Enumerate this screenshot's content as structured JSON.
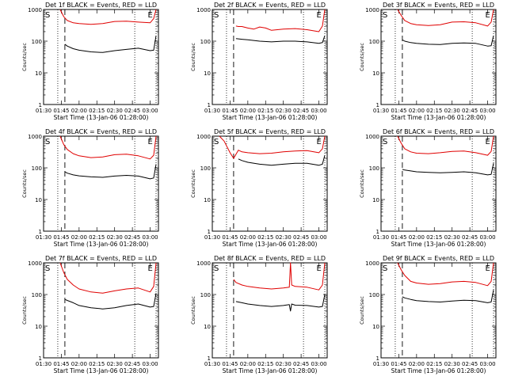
{
  "chart_data": [
    {
      "type": "line",
      "title": "Det 1f BLACK = Events, RED = LLD",
      "xlabel": "Start Time (13-Jan-06 01:28:00)",
      "ylabel": "Counts/sec",
      "yscale": "log",
      "ylim": [
        1,
        1000
      ],
      "x_ticks": [
        "01:30",
        "01:45",
        "02:00",
        "02:15",
        "02:30",
        "02:45",
        "03:00"
      ],
      "y_ticks": [
        "1",
        "10",
        "100",
        "1000"
      ],
      "markers": [
        "S",
        "E"
      ],
      "series": [
        {
          "name": "LLD",
          "color": "#e00000",
          "x": [
            "01:44",
            "01:47",
            "01:50",
            "01:55",
            "02:00",
            "02:10",
            "02:20",
            "02:30",
            "02:40",
            "02:50",
            "03:00",
            "03:03",
            "03:05"
          ],
          "y": [
            1000,
            600,
            450,
            380,
            360,
            340,
            360,
            420,
            430,
            400,
            380,
            520,
            1000
          ]
        },
        {
          "name": "Events",
          "color": "#000000",
          "x": [
            "01:48",
            "01:50",
            "01:55",
            "02:00",
            "02:10",
            "02:20",
            "02:30",
            "02:40",
            "02:50",
            "03:00",
            "03:03",
            "03:05"
          ],
          "y": [
            80,
            70,
            58,
            52,
            46,
            44,
            50,
            55,
            60,
            50,
            52,
            150
          ]
        }
      ]
    },
    {
      "type": "line",
      "title": "Det 2f BLACK = Events, RED = LLD",
      "xlabel": "Start Time (13-Jan-06 01:28:00)",
      "ylabel": "Counts/sec",
      "yscale": "log",
      "ylim": [
        1,
        1000
      ],
      "x_ticks": [
        "01:30",
        "01:45",
        "02:00",
        "02:15",
        "02:30",
        "02:45",
        "03:00"
      ],
      "y_ticks": [
        "1",
        "10",
        "100",
        "1000"
      ],
      "markers": [
        "S",
        "E"
      ],
      "series": [
        {
          "name": "LLD",
          "color": "#e00000",
          "x": [
            "01:50",
            "01:52",
            "01:55",
            "02:00",
            "02:05",
            "02:10",
            "02:15",
            "02:20",
            "02:30",
            "02:40",
            "02:50",
            "03:00",
            "03:03",
            "03:05"
          ],
          "y": [
            300,
            290,
            290,
            260,
            240,
            280,
            260,
            220,
            240,
            250,
            230,
            200,
            300,
            1000
          ]
        },
        {
          "name": "Events",
          "color": "#000000",
          "x": [
            "01:50",
            "01:55",
            "02:00",
            "02:10",
            "02:20",
            "02:30",
            "02:40",
            "02:50",
            "03:00",
            "03:03",
            "03:05"
          ],
          "y": [
            120,
            115,
            110,
            100,
            95,
            100,
            100,
            95,
            85,
            90,
            150
          ]
        }
      ]
    },
    {
      "type": "line",
      "title": "Det 3f BLACK = Events, RED = LLD",
      "xlabel": "Start Time (13-Jan-06 01:28:00)",
      "ylabel": "Counts/sec",
      "yscale": "log",
      "ylim": [
        1,
        1000
      ],
      "x_ticks": [
        "01:30",
        "01:45",
        "02:00",
        "02:15",
        "02:30",
        "02:45",
        "03:00"
      ],
      "y_ticks": [
        "1",
        "10",
        "100",
        "1000"
      ],
      "markers": [
        "S",
        "E"
      ],
      "series": [
        {
          "name": "LLD",
          "color": "#e00000",
          "x": [
            "01:44",
            "01:47",
            "01:50",
            "01:55",
            "02:00",
            "02:10",
            "02:20",
            "02:30",
            "02:40",
            "02:50",
            "03:00",
            "03:03",
            "03:05"
          ],
          "y": [
            1000,
            650,
            450,
            360,
            330,
            310,
            330,
            400,
            410,
            380,
            300,
            400,
            1000
          ]
        },
        {
          "name": "Events",
          "color": "#000000",
          "x": [
            "01:48",
            "01:50",
            "01:55",
            "02:00",
            "02:10",
            "02:20",
            "02:30",
            "02:40",
            "02:50",
            "03:00",
            "03:03",
            "03:05"
          ],
          "y": [
            110,
            100,
            90,
            85,
            80,
            78,
            85,
            88,
            85,
            70,
            72,
            150
          ]
        }
      ]
    },
    {
      "type": "line",
      "title": "Det 4f BLACK = Events, RED = LLD",
      "xlabel": "Start Time (13-Jan-06 01:28:00)",
      "ylabel": "Counts/sec",
      "yscale": "log",
      "ylim": [
        1,
        1000
      ],
      "x_ticks": [
        "01:30",
        "01:45",
        "02:00",
        "02:15",
        "02:30",
        "02:45",
        "03:00"
      ],
      "y_ticks": [
        "1",
        "10",
        "100",
        "1000"
      ],
      "markers": [
        "S",
        "E"
      ],
      "series": [
        {
          "name": "LLD",
          "color": "#e00000",
          "x": [
            "01:44",
            "01:47",
            "01:50",
            "01:55",
            "02:00",
            "02:10",
            "02:20",
            "02:30",
            "02:40",
            "02:50",
            "03:00",
            "03:03",
            "03:05"
          ],
          "y": [
            1000,
            550,
            380,
            280,
            240,
            210,
            220,
            260,
            270,
            240,
            190,
            250,
            1000
          ]
        },
        {
          "name": "Events",
          "color": "#000000",
          "x": [
            "01:48",
            "01:50",
            "01:55",
            "02:00",
            "02:10",
            "02:20",
            "02:30",
            "02:40",
            "02:50",
            "03:00",
            "03:03",
            "03:05"
          ],
          "y": [
            75,
            68,
            60,
            56,
            52,
            50,
            55,
            58,
            55,
            45,
            48,
            130
          ]
        }
      ]
    },
    {
      "type": "line",
      "title": "Det 5f BLACK = Events, RED = LLD",
      "xlabel": "Start Time (13-Jan-06 01:28:00)",
      "ylabel": "Counts/sec",
      "yscale": "log",
      "ylim": [
        1,
        1000
      ],
      "x_ticks": [
        "01:30",
        "01:45",
        "02:00",
        "02:15",
        "02:30",
        "02:45",
        "03:00"
      ],
      "y_ticks": [
        "1",
        "10",
        "100",
        "1000"
      ],
      "markers": [
        "S",
        "E"
      ],
      "series": [
        {
          "name": "LLD",
          "color": "#e00000",
          "x": [
            "01:36",
            "01:40",
            "01:45",
            "01:48",
            "01:52",
            "01:55",
            "02:00",
            "02:10",
            "02:20",
            "02:30",
            "02:40",
            "02:50",
            "03:00",
            "03:03",
            "03:05"
          ],
          "y": [
            1000,
            700,
            300,
            200,
            360,
            320,
            300,
            280,
            290,
            320,
            340,
            350,
            300,
            400,
            1000
          ]
        },
        {
          "name": "Events",
          "color": "#000000",
          "x": [
            "01:52",
            "01:55",
            "02:00",
            "02:10",
            "02:20",
            "02:30",
            "02:40",
            "02:50",
            "03:00",
            "03:03",
            "03:05"
          ],
          "y": [
            190,
            170,
            150,
            130,
            120,
            130,
            140,
            140,
            120,
            130,
            250
          ]
        }
      ]
    },
    {
      "type": "line",
      "title": "Det 6f BLACK = Events, RED = LLD",
      "xlabel": "Start Time (13-Jan-06 01:28:00)",
      "ylabel": "Counts/sec",
      "yscale": "log",
      "ylim": [
        1,
        1000
      ],
      "x_ticks": [
        "01:30",
        "01:45",
        "02:00",
        "02:15",
        "02:30",
        "02:45",
        "03:00"
      ],
      "y_ticks": [
        "1",
        "10",
        "100",
        "1000"
      ],
      "markers": [
        "S",
        "E"
      ],
      "series": [
        {
          "name": "LLD",
          "color": "#e00000",
          "x": [
            "01:44",
            "01:47",
            "01:50",
            "01:55",
            "02:00",
            "02:10",
            "02:20",
            "02:30",
            "02:40",
            "02:50",
            "03:00",
            "03:03",
            "03:05"
          ],
          "y": [
            1000,
            600,
            400,
            320,
            290,
            280,
            300,
            330,
            340,
            300,
            250,
            330,
            1000
          ]
        },
        {
          "name": "Events",
          "color": "#000000",
          "x": [
            "01:48",
            "01:50",
            "01:55",
            "02:00",
            "02:10",
            "02:20",
            "02:30",
            "02:40",
            "02:50",
            "03:00",
            "03:03",
            "03:05"
          ],
          "y": [
            90,
            85,
            80,
            75,
            72,
            70,
            72,
            75,
            70,
            60,
            62,
            140
          ]
        }
      ]
    },
    {
      "type": "line",
      "title": "Det 7f BLACK = Events, RED = LLD",
      "xlabel": "Start Time (13-Jan-06 01:28:00)",
      "ylabel": "Counts/sec",
      "yscale": "log",
      "ylim": [
        1,
        1000
      ],
      "x_ticks": [
        "01:30",
        "01:45",
        "02:00",
        "02:15",
        "02:30",
        "02:45",
        "03:00"
      ],
      "y_ticks": [
        "1",
        "10",
        "100",
        "1000"
      ],
      "markers": [
        "S",
        "E"
      ],
      "series": [
        {
          "name": "LLD",
          "color": "#e00000",
          "x": [
            "01:44",
            "01:47",
            "01:50",
            "01:55",
            "02:00",
            "02:10",
            "02:20",
            "02:30",
            "02:40",
            "02:50",
            "03:00",
            "03:03",
            "03:05"
          ],
          "y": [
            1000,
            500,
            300,
            200,
            150,
            120,
            110,
            130,
            150,
            160,
            120,
            180,
            1000
          ]
        },
        {
          "name": "Events",
          "color": "#000000",
          "x": [
            "01:48",
            "01:50",
            "01:55",
            "02:00",
            "02:10",
            "02:20",
            "02:30",
            "02:40",
            "02:50",
            "03:00",
            "03:03",
            "03:05"
          ],
          "y": [
            70,
            65,
            55,
            45,
            38,
            35,
            38,
            45,
            50,
            40,
            42,
            110
          ]
        }
      ]
    },
    {
      "type": "line",
      "title": "Det 8f BLACK = Events, RED = LLD",
      "xlabel": "Start Time (13-Jan-06 01:28:00)",
      "ylabel": "Counts/sec",
      "yscale": "log",
      "ylim": [
        1,
        1000
      ],
      "x_ticks": [
        "01:30",
        "01:45",
        "02:00",
        "02:15",
        "02:30",
        "02:45",
        "03:00"
      ],
      "y_ticks": [
        "1",
        "10",
        "100",
        "1000"
      ],
      "markers": [
        "S",
        "E"
      ],
      "series": [
        {
          "name": "LLD",
          "color": "#e00000",
          "x": [
            "01:48",
            "01:50",
            "01:55",
            "02:00",
            "02:10",
            "02:20",
            "02:30",
            "02:35",
            "02:36",
            "02:37",
            "02:40",
            "02:50",
            "03:00",
            "03:03",
            "03:05"
          ],
          "y": [
            300,
            240,
            200,
            180,
            160,
            150,
            160,
            170,
            1000,
            200,
            180,
            170,
            140,
            200,
            1000
          ]
        },
        {
          "name": "Events",
          "color": "#000000",
          "x": [
            "01:50",
            "01:55",
            "02:00",
            "02:10",
            "02:20",
            "02:30",
            "02:35",
            "02:36",
            "02:37",
            "02:40",
            "02:50",
            "03:00",
            "03:03",
            "03:05"
          ],
          "y": [
            60,
            55,
            50,
            45,
            42,
            45,
            48,
            30,
            50,
            46,
            45,
            40,
            42,
            100
          ]
        }
      ]
    },
    {
      "type": "line",
      "title": "Det 9f BLACK = Events, RED = LLD",
      "xlabel": "Start Time (13-Jan-06 01:28:00)",
      "ylabel": "Counts/sec",
      "yscale": "log",
      "ylim": [
        1,
        1000
      ],
      "x_ticks": [
        "01:30",
        "01:45",
        "02:00",
        "02:15",
        "02:30",
        "02:45",
        "03:00"
      ],
      "y_ticks": [
        "1",
        "10",
        "100",
        "1000"
      ],
      "markers": [
        "S",
        "E"
      ],
      "series": [
        {
          "name": "LLD",
          "color": "#e00000",
          "x": [
            "01:44",
            "01:47",
            "01:50",
            "01:55",
            "02:00",
            "02:10",
            "02:20",
            "02:30",
            "02:40",
            "02:50",
            "03:00",
            "03:03",
            "03:05"
          ],
          "y": [
            1000,
            600,
            400,
            260,
            230,
            210,
            220,
            250,
            260,
            240,
            190,
            260,
            1000
          ]
        },
        {
          "name": "Events",
          "color": "#000000",
          "x": [
            "01:48",
            "01:50",
            "01:55",
            "02:00",
            "02:10",
            "02:20",
            "02:30",
            "02:40",
            "02:50",
            "03:00",
            "03:03",
            "03:05"
          ],
          "y": [
            85,
            78,
            70,
            64,
            60,
            58,
            62,
            66,
            64,
            55,
            58,
            140
          ]
        }
      ]
    }
  ]
}
